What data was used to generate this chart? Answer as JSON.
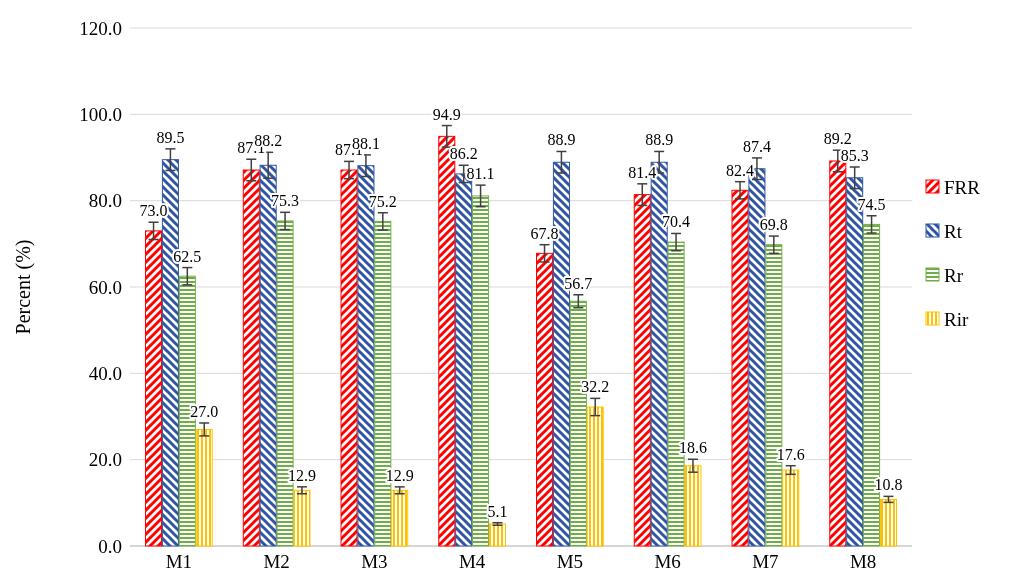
{
  "chart_data": {
    "type": "bar",
    "ylabel": "Percent (%)",
    "categories": [
      "M1",
      "M2",
      "M3",
      "M4",
      "M5",
      "M6",
      "M7",
      "M8"
    ],
    "series": [
      {
        "name": "FRR",
        "color": "#ff0000",
        "values": [
          73.0,
          87.1,
          87.1,
          94.9,
          67.8,
          81.4,
          82.4,
          89.2
        ],
        "value_labels": [
          "73.0",
          "87.1",
          "87.1",
          "94.9",
          "67.8",
          "81.4",
          "82.4",
          "89.2"
        ],
        "errors": [
          2,
          2.5,
          2,
          2.5,
          2,
          2.5,
          2,
          2.5
        ]
      },
      {
        "name": "Rt",
        "color": "#2f55a4",
        "values": [
          89.5,
          88.2,
          88.1,
          86.2,
          88.9,
          88.9,
          87.4,
          85.3
        ],
        "value_labels": [
          "89.5",
          "88.2",
          "88.1",
          "86.2",
          "88.9",
          "88.9",
          "87.4",
          "85.3"
        ],
        "errors": [
          2.5,
          3,
          2.5,
          2,
          2.5,
          2.5,
          2.5,
          2.5
        ]
      },
      {
        "name": "Rr",
        "color": "#70ad47",
        "values": [
          62.5,
          75.3,
          75.2,
          81.1,
          56.7,
          70.4,
          69.8,
          74.5
        ],
        "value_labels": [
          "62.5",
          "75.3",
          "75.2",
          "81.1",
          "56.7",
          "70.4",
          "69.8",
          "74.5"
        ],
        "errors": [
          2,
          2,
          2,
          2.5,
          1.5,
          2,
          2,
          2
        ]
      },
      {
        "name": "Rir",
        "color": "#ffc000",
        "values": [
          27.0,
          12.9,
          12.9,
          5.1,
          32.2,
          18.6,
          17.6,
          10.8
        ],
        "value_labels": [
          "27.0",
          "12.9",
          "12.9",
          "5.1",
          "32.2",
          "18.6",
          "17.6",
          "10.8"
        ],
        "errors": [
          1.5,
          0.8,
          0.8,
          0.3,
          2,
          1.5,
          1,
          0.7
        ]
      }
    ],
    "ylim": [
      0,
      120
    ],
    "yticks": [
      {
        "value": 0,
        "label": "0.0"
      },
      {
        "value": 20,
        "label": "20.0"
      },
      {
        "value": 40,
        "label": "40.0"
      },
      {
        "value": 60,
        "label": "60.0"
      },
      {
        "value": 80,
        "label": "80.0"
      },
      {
        "value": 100,
        "label": "100.0"
      },
      {
        "value": 120,
        "label": "120.0"
      }
    ],
    "grid": "y",
    "legend": "right"
  }
}
